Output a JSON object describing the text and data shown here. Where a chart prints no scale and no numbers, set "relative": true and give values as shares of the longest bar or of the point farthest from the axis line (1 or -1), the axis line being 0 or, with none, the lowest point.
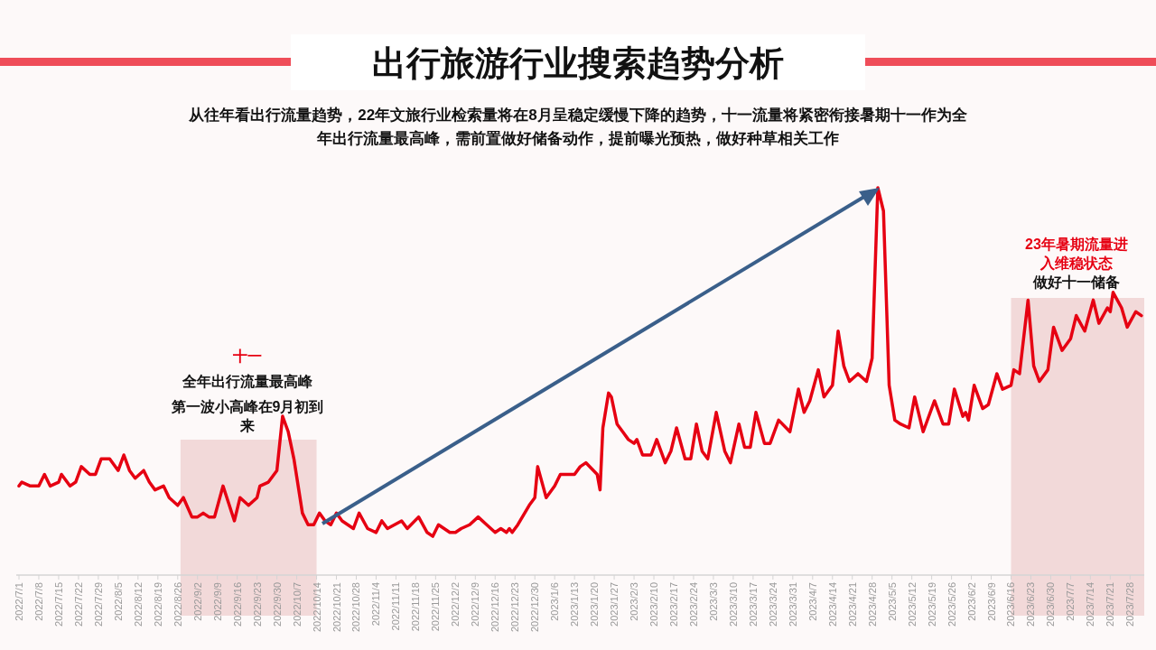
{
  "chart_data": {
    "type": "line",
    "title": "出行旅游行业搜索趋势分析",
    "subtitle": "从往年看出行流量趋势，22年文旅行业检索量将在8月呈稳定缓慢下降的趋势，十一流量将紧密衔接暑期十一作为全年出行流量最高峰，需前置做好储备动作，提前曝光预热，做好种草相关工作",
    "relative": true,
    "line_style": "solid",
    "x": [
      "2022-07-01",
      "2022-07-02",
      "2022-07-05",
      "2022-07-08",
      "2022-07-10",
      "2022-07-12",
      "2022-07-15",
      "2022-07-16",
      "2022-07-19",
      "2022-07-21",
      "2022-07-23",
      "2022-07-26",
      "2022-07-28",
      "2022-07-30",
      "2022-08-02",
      "2022-08-05",
      "2022-08-07",
      "2022-08-09",
      "2022-08-11",
      "2022-08-14",
      "2022-08-16",
      "2022-08-18",
      "2022-08-21",
      "2022-08-23",
      "2022-08-26",
      "2022-08-28",
      "2022-08-31",
      "2022-09-02",
      "2022-09-04",
      "2022-09-06",
      "2022-09-08",
      "2022-09-11",
      "2022-09-15",
      "2022-09-17",
      "2022-09-20",
      "2022-09-23",
      "2022-09-24",
      "2022-09-27",
      "2022-09-30",
      "2022-10-02",
      "2022-10-04",
      "2022-10-06",
      "2022-10-09",
      "2022-10-11",
      "2022-10-13",
      "2022-10-15",
      "2022-10-17",
      "2022-10-19",
      "2022-10-21",
      "2022-10-23",
      "2022-10-27",
      "2022-10-29",
      "2022-11-01",
      "2022-11-04",
      "2022-11-06",
      "2022-11-08",
      "2022-11-13",
      "2022-11-15",
      "2022-11-19",
      "2022-11-22",
      "2022-11-24",
      "2022-11-26",
      "2022-11-30",
      "2022-12-02",
      "2022-12-04",
      "2022-12-07",
      "2022-12-10",
      "2022-12-13",
      "2022-12-16",
      "2022-12-18",
      "2022-12-20",
      "2022-12-21",
      "2022-12-22",
      "2022-12-24",
      "2022-12-28",
      "2022-12-30",
      "2022-12-31",
      "2023-01-03",
      "2023-01-06",
      "2023-01-08",
      "2023-01-13",
      "2023-01-15",
      "2023-01-17",
      "2023-01-21",
      "2023-01-22",
      "2023-01-23",
      "2023-01-25",
      "2023-01-26",
      "2023-01-28",
      "2023-01-30",
      "2023-02-01",
      "2023-02-03",
      "2023-02-04",
      "2023-02-06",
      "2023-02-09",
      "2023-02-11",
      "2023-02-14",
      "2023-02-16",
      "2023-02-18",
      "2023-02-21",
      "2023-02-23",
      "2023-02-25",
      "2023-02-27",
      "2023-03-01",
      "2023-03-04",
      "2023-03-07",
      "2023-03-09",
      "2023-03-12",
      "2023-03-14",
      "2023-03-16",
      "2023-03-18",
      "2023-03-21",
      "2023-03-23",
      "2023-03-26",
      "2023-03-30",
      "2023-04-02",
      "2023-04-04",
      "2023-04-06",
      "2023-04-09",
      "2023-04-11",
      "2023-04-14",
      "2023-04-16",
      "2023-04-18",
      "2023-04-20",
      "2023-04-23",
      "2023-04-26",
      "2023-04-28",
      "2023-04-30",
      "2023-05-02",
      "2023-05-04",
      "2023-05-06",
      "2023-05-08",
      "2023-05-11",
      "2023-05-13",
      "2023-05-16",
      "2023-05-20",
      "2023-05-23",
      "2023-05-25",
      "2023-05-27",
      "2023-05-30",
      "2023-05-31",
      "2023-06-01",
      "2023-06-03",
      "2023-06-06",
      "2023-06-08",
      "2023-06-11",
      "2023-06-13",
      "2023-06-16",
      "2023-06-17",
      "2023-06-19",
      "2023-06-22",
      "2023-06-24",
      "2023-06-26",
      "2023-06-29",
      "2023-07-01",
      "2023-07-04",
      "2023-07-07",
      "2023-07-09",
      "2023-07-12",
      "2023-07-15",
      "2023-07-17",
      "2023-07-20",
      "2023-07-21",
      "2023-07-22",
      "2023-07-25",
      "2023-07-27",
      "2023-07-30",
      "2023-08-01"
    ],
    "series": [
      {
        "color": "#e60012",
        "values": [
          0.23,
          0.24,
          0.23,
          0.23,
          0.26,
          0.23,
          0.24,
          0.26,
          0.23,
          0.24,
          0.28,
          0.26,
          0.26,
          0.3,
          0.3,
          0.27,
          0.31,
          0.27,
          0.25,
          0.27,
          0.24,
          0.22,
          0.23,
          0.2,
          0.18,
          0.2,
          0.15,
          0.15,
          0.16,
          0.15,
          0.15,
          0.23,
          0.14,
          0.2,
          0.18,
          0.2,
          0.23,
          0.24,
          0.27,
          0.41,
          0.37,
          0.3,
          0.16,
          0.13,
          0.13,
          0.16,
          0.14,
          0.13,
          0.16,
          0.14,
          0.12,
          0.16,
          0.12,
          0.11,
          0.14,
          0.12,
          0.14,
          0.12,
          0.15,
          0.11,
          0.1,
          0.13,
          0.11,
          0.11,
          0.12,
          0.13,
          0.15,
          0.13,
          0.11,
          0.12,
          0.11,
          0.12,
          0.11,
          0.13,
          0.18,
          0.2,
          0.28,
          0.2,
          0.23,
          0.26,
          0.26,
          0.28,
          0.29,
          0.26,
          0.22,
          0.38,
          0.47,
          0.46,
          0.39,
          0.37,
          0.35,
          0.34,
          0.35,
          0.31,
          0.31,
          0.35,
          0.29,
          0.32,
          0.38,
          0.3,
          0.3,
          0.39,
          0.32,
          0.3,
          0.42,
          0.32,
          0.29,
          0.39,
          0.33,
          0.33,
          0.42,
          0.34,
          0.34,
          0.4,
          0.37,
          0.48,
          0.42,
          0.45,
          0.53,
          0.46,
          0.49,
          0.63,
          0.54,
          0.5,
          0.52,
          0.5,
          0.56,
          1.0,
          0.94,
          0.49,
          0.4,
          0.39,
          0.38,
          0.46,
          0.37,
          0.45,
          0.39,
          0.39,
          0.48,
          0.41,
          0.42,
          0.4,
          0.49,
          0.43,
          0.44,
          0.52,
          0.48,
          0.49,
          0.53,
          0.52,
          0.71,
          0.54,
          0.5,
          0.53,
          0.64,
          0.58,
          0.61,
          0.67,
          0.63,
          0.71,
          0.65,
          0.69,
          0.68,
          0.73,
          0.69,
          0.64,
          0.68,
          0.67
        ]
      }
    ],
    "xlim": [
      "2022-07-01",
      "2023-08-02"
    ],
    "xticks": [
      {
        "value": "2022-07-01",
        "label": "2022/7/1"
      },
      {
        "value": "2022-07-08",
        "label": "2022/7/8"
      },
      {
        "value": "2022-07-15",
        "label": "2022/7/15"
      },
      {
        "value": "2022-07-22",
        "label": "2022/7/22"
      },
      {
        "value": "2022-07-29",
        "label": "2022/7/29"
      },
      {
        "value": "2022-08-05",
        "label": "2022/8/5"
      },
      {
        "value": "2022-08-12",
        "label": "2022/8/12"
      },
      {
        "value": "2022-08-19",
        "label": "2022/8/19"
      },
      {
        "value": "2022-08-26",
        "label": "2022/8/26"
      },
      {
        "value": "2022-09-02",
        "label": "2022/9/2"
      },
      {
        "value": "2022-09-09",
        "label": "2022/9/9"
      },
      {
        "value": "2022-09-16",
        "label": "2022/9/16"
      },
      {
        "value": "2022-09-23",
        "label": "2022/9/23"
      },
      {
        "value": "2022-09-30",
        "label": "2022/9/30"
      },
      {
        "value": "2022-10-07",
        "label": "2022/10/7"
      },
      {
        "value": "2022-10-14",
        "label": "2022/10/14"
      },
      {
        "value": "2022-10-21",
        "label": "2022/10/21"
      },
      {
        "value": "2022-10-28",
        "label": "2022/10/28"
      },
      {
        "value": "2022-11-04",
        "label": "2022/11/4"
      },
      {
        "value": "2022-11-11",
        "label": "2022/11/11"
      },
      {
        "value": "2022-11-18",
        "label": "2022/11/18"
      },
      {
        "value": "2022-11-25",
        "label": "2022/11/25"
      },
      {
        "value": "2022-12-02",
        "label": "2022/12/2"
      },
      {
        "value": "2022-12-09",
        "label": "2022/12/9"
      },
      {
        "value": "2022-12-16",
        "label": "2022/12/16"
      },
      {
        "value": "2022-12-23",
        "label": "2022/12/23"
      },
      {
        "value": "2022-12-30",
        "label": "2022/12/30"
      },
      {
        "value": "2023-01-06",
        "label": "2023/1/6"
      },
      {
        "value": "2023-01-13",
        "label": "2023/1/13"
      },
      {
        "value": "2023-01-20",
        "label": "2023/1/20"
      },
      {
        "value": "2023-01-27",
        "label": "2023/1/27"
      },
      {
        "value": "2023-02-03",
        "label": "2023/2/3"
      },
      {
        "value": "2023-02-10",
        "label": "2023/2/10"
      },
      {
        "value": "2023-02-17",
        "label": "2023/2/17"
      },
      {
        "value": "2023-02-24",
        "label": "2023/2/24"
      },
      {
        "value": "2023-03-03",
        "label": "2023/3/3"
      },
      {
        "value": "2023-03-10",
        "label": "2023/3/10"
      },
      {
        "value": "2023-03-17",
        "label": "2023/3/17"
      },
      {
        "value": "2023-03-24",
        "label": "2023/3/24"
      },
      {
        "value": "2023-03-31",
        "label": "2023/3/31"
      },
      {
        "value": "2023-04-07",
        "label": "2023/4/7"
      },
      {
        "value": "2023-04-14",
        "label": "2023/4/14"
      },
      {
        "value": "2023-04-21",
        "label": "2023/4/21"
      },
      {
        "value": "2023-04-28",
        "label": "2023/4/28"
      },
      {
        "value": "2023-05-05",
        "label": "2023/5/5"
      },
      {
        "value": "2023-05-12",
        "label": "2023/5/12"
      },
      {
        "value": "2023-05-19",
        "label": "2023/5/19"
      },
      {
        "value": "2023-05-26",
        "label": "2023/5/26"
      },
      {
        "value": "2023-06-02",
        "label": "2023/6/2"
      },
      {
        "value": "2023-06-09",
        "label": "2023/6/9"
      },
      {
        "value": "2023-06-16",
        "label": "2023/6/16"
      },
      {
        "value": "2023-06-23",
        "label": "2023/6/23"
      },
      {
        "value": "2023-06-30",
        "label": "2023/6/30"
      },
      {
        "value": "2023-07-07",
        "label": "2023/7/7"
      },
      {
        "value": "2023-07-14",
        "label": "2023/7/14"
      },
      {
        "value": "2023-07-21",
        "label": "2023/7/21"
      },
      {
        "value": "2023-07-28",
        "label": "2023/7/28"
      }
    ],
    "bands": [
      {
        "axis": "x",
        "from": "2022-08-27",
        "to": "2022-10-14",
        "color": "#f0d4d4"
      },
      {
        "axis": "x",
        "from": "2023-06-16",
        "to": "2023-08-02",
        "color": "#f0d4d4"
      }
    ],
    "annotations": [
      "十一",
      "全年出行流量最高峰",
      "第一波小高峰在9月初到来",
      "23年暑期流量进入维稳状态",
      "做好十一储备"
    ]
  }
}
